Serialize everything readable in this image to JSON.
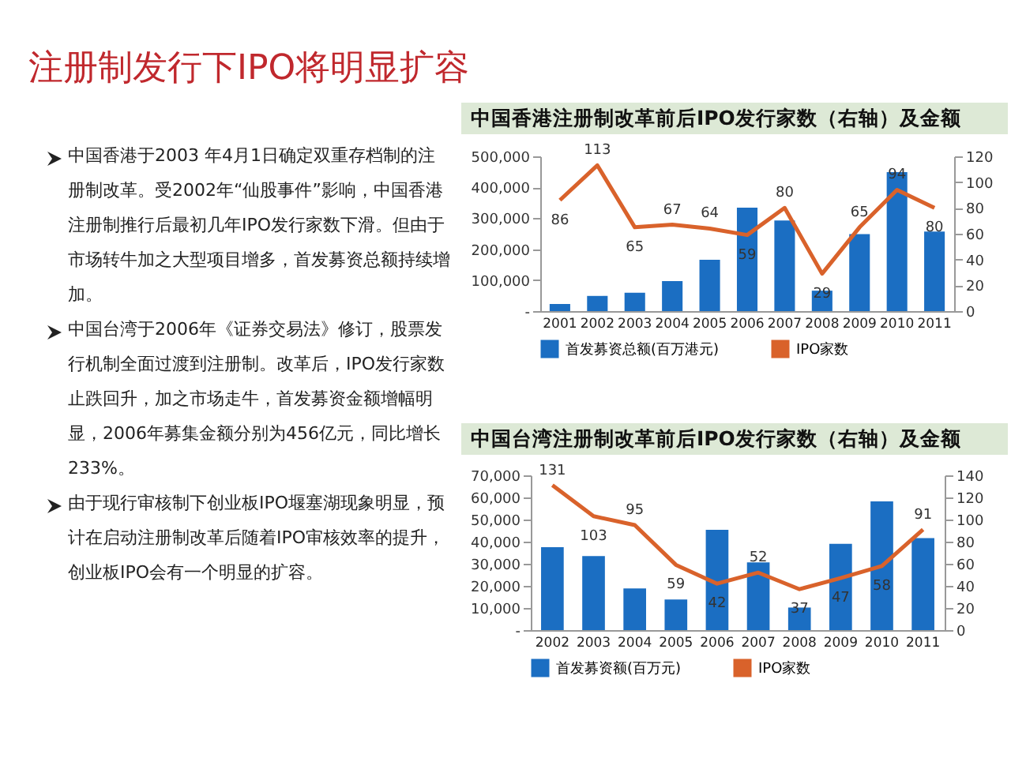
{
  "chart_data": [
    {
      "type": "other",
      "title": "注册制发行下IPO将明显扩容",
      "annotations": [
        "中国香港于2003 年4月1日确定双重存档制的注册制改革。受2002年“仙股事件”影响，中国香港注册制推行后最初几年IPO发行家数下滑。但由于市场转牛加之大型项目增多，首发募资总额持续增加。",
        "中国台湾于2006年《证券交易法》修订，股票发行机制全面过渡到注册制。改革后，IPO发行家数止跌回升，加之市场走牛，首发募资金额增幅明显，2006年募集金额分别为456亿元，同比增长233%。",
        "由于现行审核制下创业板IPO堰塞湖现象明显，预计在启动注册制改革后随着IPO审核效率的提升，创业板IPO会有一个明显的扩容。"
      ]
    },
    {
      "type": "bar",
      "title": "中国香港注册制改革前后IPO发行家数（右轴）及金额",
      "categories": [
        "2001",
        "2002",
        "2003",
        "2004",
        "2005",
        "2006",
        "2007",
        "2008",
        "2009",
        "2010",
        "2011"
      ],
      "legend": "bottom",
      "ylim": [
        0,
        500000
      ],
      "yticks": [
        {
          "value": 0,
          "label": "-"
        },
        {
          "value": 100000,
          "label": "100,000"
        },
        {
          "value": 200000,
          "label": "200,000"
        },
        {
          "value": 300000,
          "label": "300,000"
        },
        {
          "value": 400000,
          "label": "400,000"
        },
        {
          "value": 500000,
          "label": "500,000"
        }
      ],
      "y2lim": [
        0,
        120
      ],
      "y2ticks": [
        0,
        20,
        40,
        60,
        80,
        100,
        120
      ],
      "series": [
        {
          "name": "首发募资总额(百万港元)",
          "type": "bar",
          "color": "#1b6ec2",
          "values": [
            23000,
            49000,
            59000,
            97000,
            166000,
            334000,
            293000,
            66000,
            249000,
            449000,
            257000
          ]
        },
        {
          "name": "IPO家数",
          "type": "line",
          "axis": "y2",
          "color": "#d9622b",
          "values": [
            86,
            113,
            65,
            67,
            64,
            59,
            80,
            29,
            65,
            94,
            80
          ],
          "value_labels": [
            "86",
            "113",
            "65",
            "67",
            "64",
            "59",
            "80",
            "29",
            "65",
            "94",
            "80"
          ]
        }
      ]
    },
    {
      "type": "bar",
      "title": "中国台湾注册制改革前后IPO发行家数（右轴）及金额",
      "categories": [
        "2002",
        "2003",
        "2004",
        "2005",
        "2006",
        "2007",
        "2008",
        "2009",
        "2010",
        "2011"
      ],
      "legend": "bottom",
      "ylim": [
        0,
        70000
      ],
      "yticks": [
        {
          "value": 0,
          "label": "-"
        },
        {
          "value": 10000,
          "label": "10,000"
        },
        {
          "value": 20000,
          "label": "20,000"
        },
        {
          "value": 30000,
          "label": "30,000"
        },
        {
          "value": 40000,
          "label": "40,000"
        },
        {
          "value": 50000,
          "label": "50,000"
        },
        {
          "value": 60000,
          "label": "60,000"
        },
        {
          "value": 70000,
          "label": "70,000"
        }
      ],
      "y2lim": [
        0,
        140
      ],
      "y2ticks": [
        0,
        20,
        40,
        60,
        80,
        100,
        120,
        140
      ],
      "series": [
        {
          "name": "首发募资额(百万元)",
          "type": "bar",
          "color": "#1b6ec2",
          "values": [
            37500,
            33500,
            18800,
            13800,
            45400,
            30600,
            10200,
            39000,
            58200,
            41600
          ]
        },
        {
          "name": "IPO家数",
          "type": "line",
          "axis": "y2",
          "color": "#d9622b",
          "values": [
            131,
            103,
            95,
            59,
            42,
            52,
            37,
            47,
            58,
            91
          ],
          "value_labels": [
            "131",
            "103",
            "95",
            "59",
            "42",
            "52",
            "37",
            "47",
            "58",
            "91"
          ]
        }
      ]
    }
  ]
}
